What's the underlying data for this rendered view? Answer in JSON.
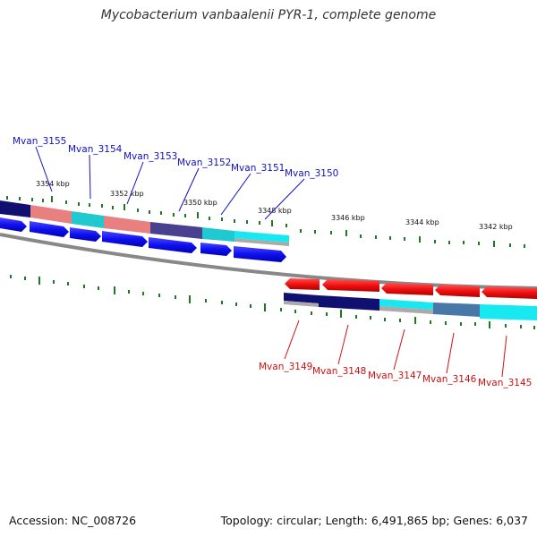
{
  "title": "Mycobacterium vanbaalenii PYR-1, complete genome",
  "footer": {
    "accession": "Accession: NC_008726",
    "topology": "Topology: circular; Length: 6,491,865 bp; Genes: 6,037"
  },
  "scale_labels": [
    "3354 kbp",
    "3352 kbp",
    "3350 kbp",
    "3348 kbp",
    "3346 kbp",
    "3344 kbp",
    "3342 kbp"
  ],
  "forward_genes": [
    "Mvan_3155",
    "Mvan_3154",
    "Mvan_3153",
    "Mvan_3152",
    "Mvan_3151",
    "Mvan_3150"
  ],
  "reverse_genes": [
    "Mvan_3149",
    "Mvan_3148",
    "Mvan_3147",
    "Mvan_3146",
    "Mvan_3145"
  ],
  "colors": {
    "forward_gene": "#1010f0",
    "reverse_gene": "#f01010",
    "forward_label": "#1010c8",
    "reverse_label": "#d01010",
    "tick": "#1e7a1e",
    "backbone": "#888888",
    "cog_pink": "#e88080",
    "cog_cyan": "#20c8d0",
    "cog_navy": "#101070",
    "cog_slate": "#4a4090",
    "cog_steel": "#4878a8",
    "cog_aqua": "#18e8f0"
  }
}
